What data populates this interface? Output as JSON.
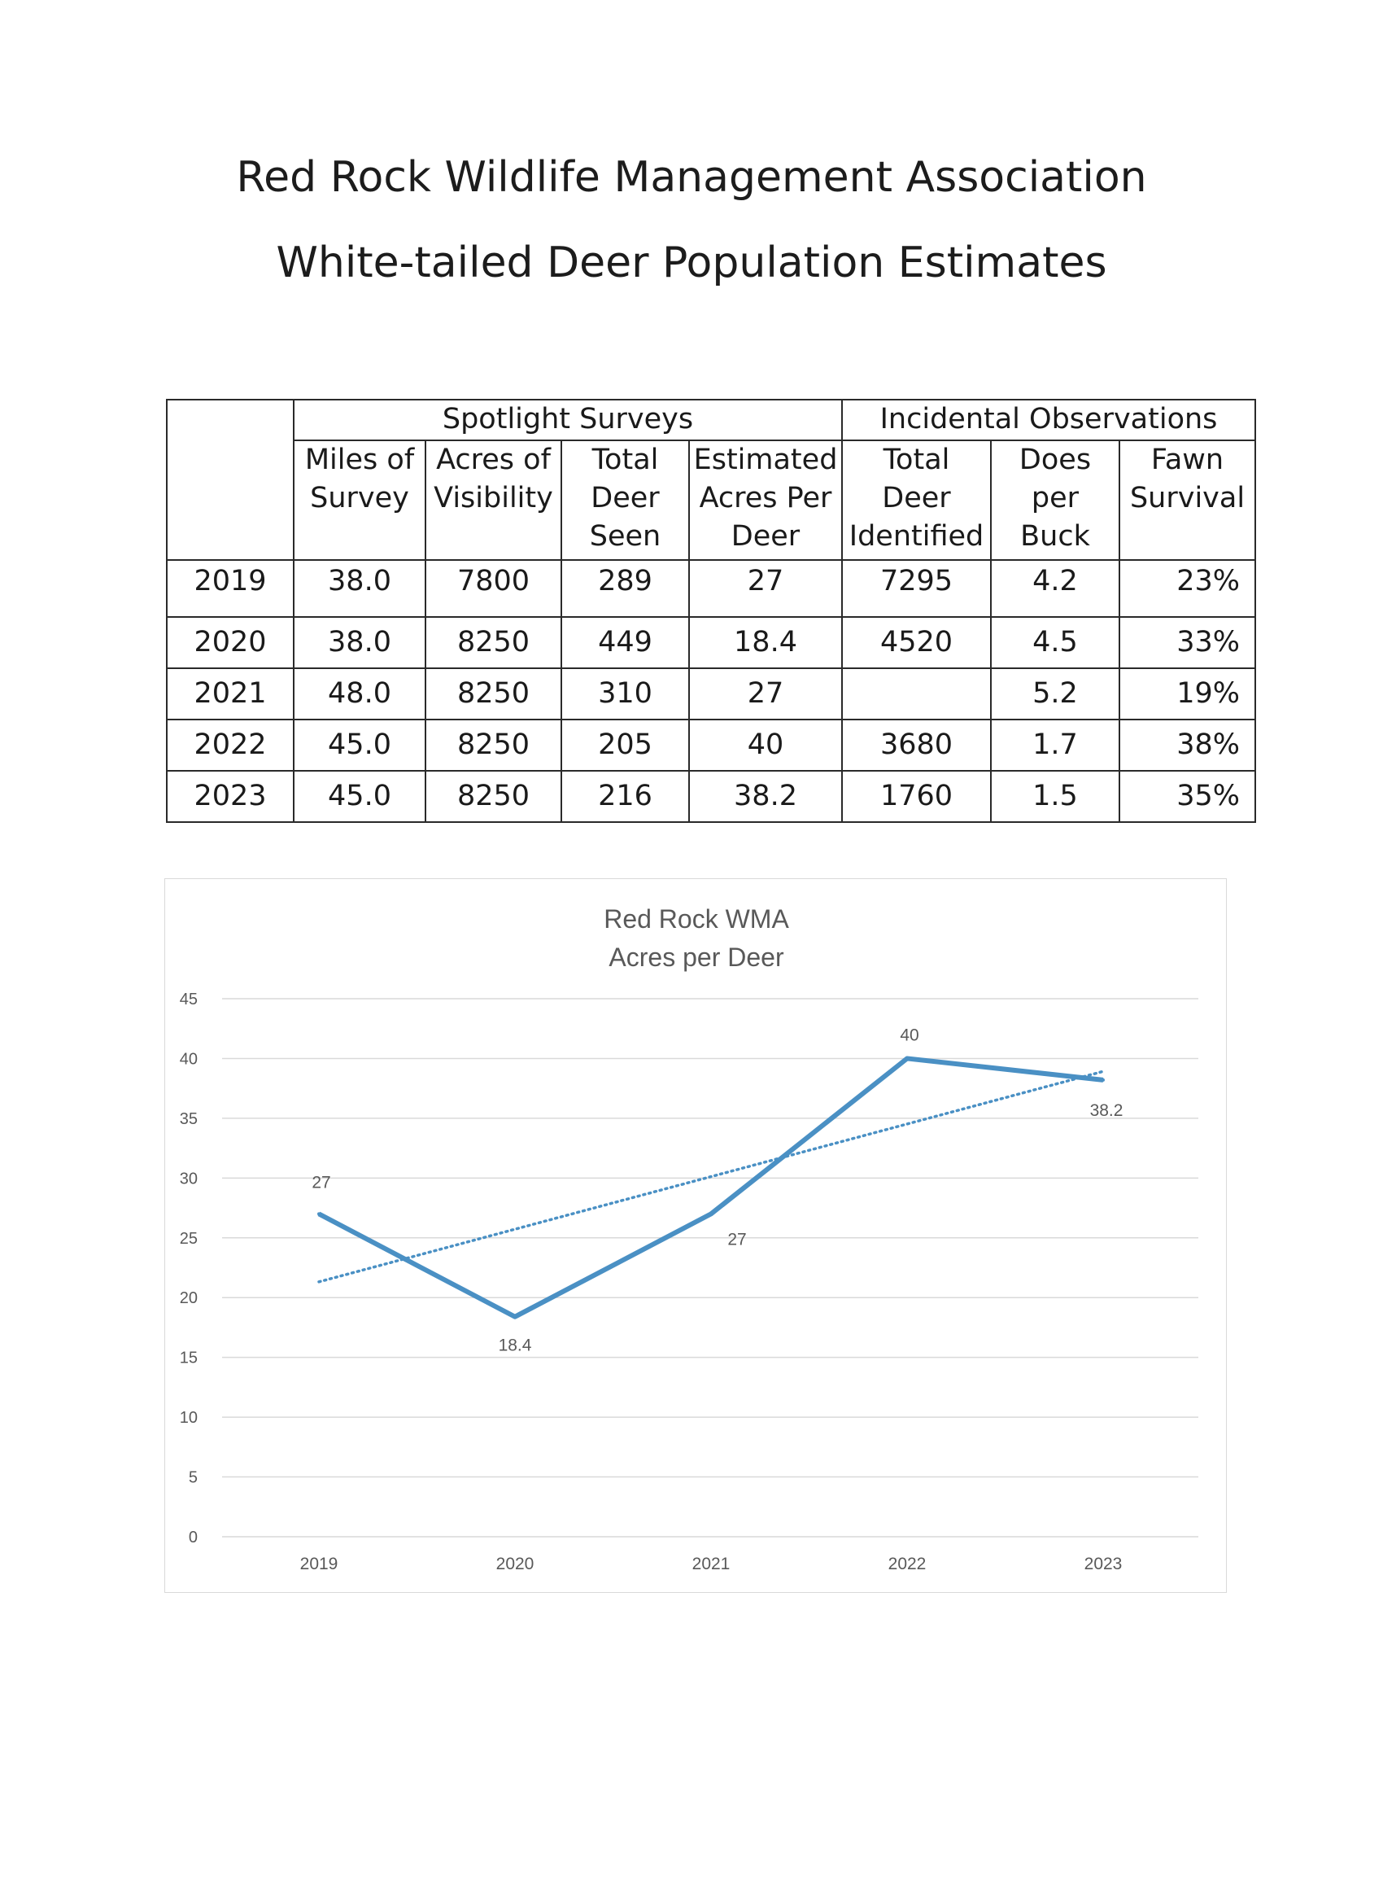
{
  "header": {
    "line1": "Red Rock Wildlife Management Association",
    "line2": "White-tailed Deer Population Estimates"
  },
  "table": {
    "groups": {
      "spotlight": "Spotlight Surveys",
      "incidental": "Incidental Observations"
    },
    "columns": [
      [
        "Miles of",
        "Survey"
      ],
      [
        "Acres of",
        "Visibility"
      ],
      [
        "Total",
        "Deer",
        "Seen"
      ],
      [
        "Estimated",
        "Acres Per",
        "Deer"
      ],
      [
        "Total",
        "Deer",
        "Identified"
      ],
      [
        "Does",
        "per",
        "Buck"
      ],
      [
        "Fawn",
        "Survival"
      ]
    ],
    "rows": [
      [
        "2019",
        "38.0",
        "7800",
        "289",
        "27",
        "7295",
        "4.2",
        "23%"
      ],
      [
        "2020",
        "38.0",
        "8250",
        "449",
        "18.4",
        "4520",
        "4.5",
        "33%"
      ],
      [
        "2021",
        "48.0",
        "8250",
        "310",
        "27",
        "",
        "5.2",
        "19%"
      ],
      [
        "2022",
        "45.0",
        "8250",
        "205",
        "40",
        "3680",
        "1.7",
        "38%"
      ],
      [
        "2023",
        "45.0",
        "8250",
        "216",
        "38.2",
        "1760",
        "1.5",
        "35%"
      ]
    ]
  },
  "chart_data": {
    "type": "line",
    "title": [
      "Red Rock WMA",
      "Acres per Deer"
    ],
    "categories": [
      "2019",
      "2020",
      "2021",
      "2022",
      "2023"
    ],
    "series": [
      {
        "name": "Acres per Deer",
        "values": [
          27,
          18.4,
          27,
          40,
          38.2
        ],
        "labels": [
          "27",
          "18.4",
          "27",
          "40",
          "38.2"
        ]
      }
    ],
    "trendline": {
      "type": "linear",
      "style": "dotted"
    },
    "yticks": [
      "0",
      "5",
      "10",
      "15",
      "20",
      "25",
      "30",
      "35",
      "40",
      "45"
    ],
    "ylim": [
      0,
      45
    ],
    "grid": true,
    "colors": {
      "line": "#4a90c4",
      "grid": "#d9d9d9",
      "axis_text": "#595959",
      "title": "#595959"
    }
  }
}
